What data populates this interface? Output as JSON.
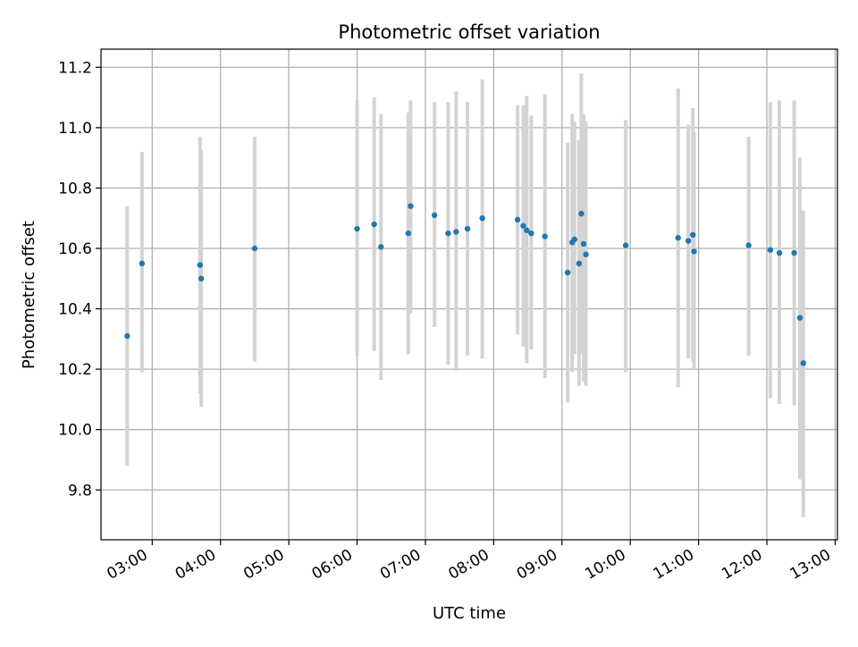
{
  "chart_data": {
    "type": "scatter",
    "title": "Photometric offset variation",
    "xlabel": "UTC time",
    "ylabel": "Photometric offset",
    "x_tick_labels": [
      "03:00",
      "04:00",
      "05:00",
      "06:00",
      "07:00",
      "08:00",
      "09:00",
      "10:00",
      "11:00",
      "12:00",
      "13:00"
    ],
    "x_tick_values": [
      "03:00",
      "04:00",
      "05:00",
      "06:00",
      "07:00",
      "08:00",
      "09:00",
      "10:00",
      "11:00",
      "12:00",
      "13:00"
    ],
    "y_tick_labels": [
      "9.8",
      "10.0",
      "10.2",
      "10.4",
      "10.6",
      "10.8",
      "11.0",
      "11.2"
    ],
    "y_tick_values": [
      9.8,
      10.0,
      10.2,
      10.4,
      10.6,
      10.8,
      11.0,
      11.2
    ],
    "xlim": [
      "02:15",
      "13:02"
    ],
    "ylim": [
      9.635,
      11.26
    ],
    "grid": true,
    "colors": {
      "point": "#1f77b4",
      "errorbar": "#d3d3d3",
      "grid": "#b0b0b0"
    },
    "points": [
      {
        "t": "02:38",
        "y": 10.31,
        "lo": 9.88,
        "hi": 10.74
      },
      {
        "t": "02:51",
        "y": 10.55,
        "lo": 10.19,
        "hi": 10.92
      },
      {
        "t": "03:42",
        "y": 10.545,
        "lo": 10.12,
        "hi": 10.97
      },
      {
        "t": "03:43",
        "y": 10.5,
        "lo": 10.075,
        "hi": 10.925
      },
      {
        "t": "04:30",
        "y": 10.6,
        "lo": 10.225,
        "hi": 10.97
      },
      {
        "t": "06:00",
        "y": 10.665,
        "lo": 10.245,
        "hi": 11.09
      },
      {
        "t": "06:15",
        "y": 10.68,
        "lo": 10.26,
        "hi": 11.1
      },
      {
        "t": "06:21",
        "y": 10.605,
        "lo": 10.165,
        "hi": 11.045
      },
      {
        "t": "06:45",
        "y": 10.65,
        "lo": 10.25,
        "hi": 11.05
      },
      {
        "t": "06:47",
        "y": 10.74,
        "lo": 10.385,
        "hi": 11.09
      },
      {
        "t": "07:08",
        "y": 10.71,
        "lo": 10.34,
        "hi": 11.085
      },
      {
        "t": "07:20",
        "y": 10.65,
        "lo": 10.215,
        "hi": 11.085
      },
      {
        "t": "07:27",
        "y": 10.655,
        "lo": 10.195,
        "hi": 11.12
      },
      {
        "t": "07:37",
        "y": 10.665,
        "lo": 10.245,
        "hi": 11.085
      },
      {
        "t": "07:50",
        "y": 10.7,
        "lo": 10.235,
        "hi": 11.16
      },
      {
        "t": "08:21",
        "y": 10.695,
        "lo": 10.315,
        "hi": 11.075
      },
      {
        "t": "08:26",
        "y": 10.675,
        "lo": 10.275,
        "hi": 11.075
      },
      {
        "t": "08:29",
        "y": 10.66,
        "lo": 10.22,
        "hi": 11.105
      },
      {
        "t": "08:33",
        "y": 10.65,
        "lo": 10.265,
        "hi": 11.04
      },
      {
        "t": "08:45",
        "y": 10.64,
        "lo": 10.17,
        "hi": 11.11
      },
      {
        "t": "09:05",
        "y": 10.52,
        "lo": 10.09,
        "hi": 10.95
      },
      {
        "t": "09:09",
        "y": 10.62,
        "lo": 10.19,
        "hi": 11.045
      },
      {
        "t": "09:11",
        "y": 10.63,
        "lo": 10.25,
        "hi": 11.02
      },
      {
        "t": "09:15",
        "y": 10.55,
        "lo": 10.145,
        "hi": 10.96
      },
      {
        "t": "09:17",
        "y": 10.715,
        "lo": 10.25,
        "hi": 11.18
      },
      {
        "t": "09:19",
        "y": 10.615,
        "lo": 10.16,
        "hi": 11.045
      },
      {
        "t": "09:21",
        "y": 10.58,
        "lo": 10.145,
        "hi": 11.02
      },
      {
        "t": "09:56",
        "y": 10.61,
        "lo": 10.19,
        "hi": 11.025
      },
      {
        "t": "10:42",
        "y": 10.635,
        "lo": 10.14,
        "hi": 11.13
      },
      {
        "t": "10:51",
        "y": 10.625,
        "lo": 10.235,
        "hi": 11.01
      },
      {
        "t": "10:55",
        "y": 10.645,
        "lo": 10.225,
        "hi": 11.065
      },
      {
        "t": "10:56",
        "y": 10.59,
        "lo": 10.2,
        "hi": 10.985
      },
      {
        "t": "11:44",
        "y": 10.61,
        "lo": 10.245,
        "hi": 10.97
      },
      {
        "t": "12:03",
        "y": 10.595,
        "lo": 10.105,
        "hi": 11.085
      },
      {
        "t": "12:11",
        "y": 10.585,
        "lo": 10.085,
        "hi": 11.09
      },
      {
        "t": "12:24",
        "y": 10.585,
        "lo": 10.08,
        "hi": 11.09
      },
      {
        "t": "12:29",
        "y": 10.37,
        "lo": 9.835,
        "hi": 10.9
      },
      {
        "t": "12:32",
        "y": 10.22,
        "lo": 9.71,
        "hi": 10.725
      }
    ]
  }
}
